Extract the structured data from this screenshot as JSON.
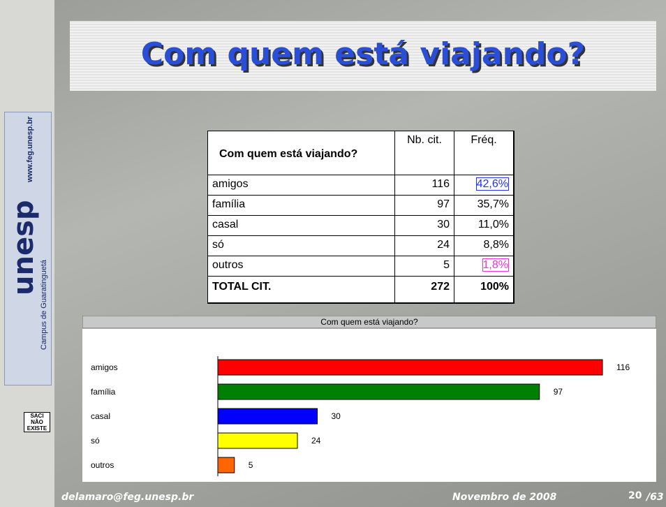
{
  "title": "Com quem está viajando?",
  "logo": {
    "brand": "unesp",
    "site": "www.feg.unesp.br",
    "campus": "Campus de Guaratinguetá",
    "sign": "SACI NÃO EXISTE"
  },
  "table": {
    "header": [
      "Com quem está viajando?",
      "Nb. cit.",
      "Fréq."
    ],
    "rows": [
      [
        "amigos",
        "116",
        "42,6%"
      ],
      [
        "família",
        "97",
        "35,7%"
      ],
      [
        "casal",
        "30",
        "11,0%"
      ],
      [
        "só",
        "24",
        "8,8%"
      ],
      [
        "outros",
        "5",
        "1,8%"
      ]
    ],
    "total": [
      "TOTAL CIT.",
      "272",
      "100%"
    ]
  },
  "chart_data": {
    "type": "bar",
    "orientation": "horizontal",
    "title": "Com quem está viajando?",
    "categories": [
      "amigos",
      "família",
      "casal",
      "só",
      "outros"
    ],
    "values": [
      116,
      97,
      30,
      24,
      5
    ],
    "colors": [
      "#ff0000",
      "#008000",
      "#0000ff",
      "#ffff00",
      "#ff6600"
    ]
  },
  "footer": {
    "email": "delamaro@feg.unesp.br",
    "date": "Novembro de 2008",
    "page": "20",
    "total": "/63"
  }
}
